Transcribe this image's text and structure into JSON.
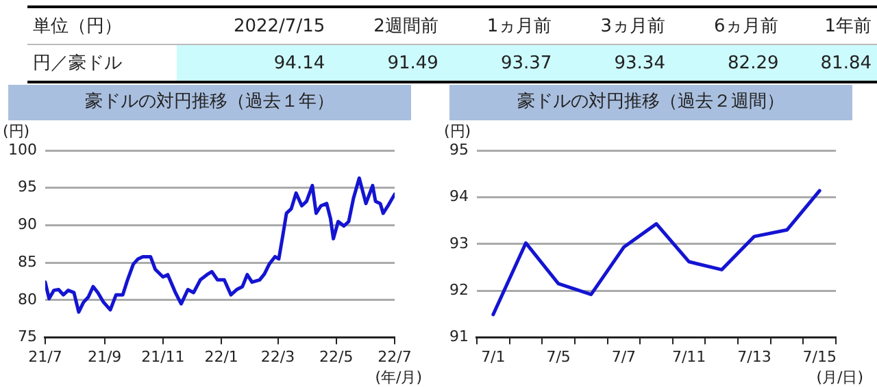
{
  "chart_data": [
    {
      "type": "other",
      "ylabel": "単位（円）",
      "categories": [
        "2022/7/15",
        "2週間前",
        "1ヵ月前",
        "3ヵ月前",
        "6ヵ月前",
        "1年前"
      ],
      "color": "#ccfbfd",
      "series": [
        {
          "name": "円／豪ドル",
          "values": [
            94.14,
            91.49,
            93.37,
            93.34,
            82.29,
            81.84
          ]
        }
      ],
      "data_labels": true
    },
    {
      "type": "line",
      "title": "豪ドルの対円推移（過去１年）",
      "ylabel": "(円)",
      "xlabel": "(年/月)",
      "grid": "y",
      "legend": false,
      "marker": "none",
      "line_style": "solid",
      "xlim": [
        "2021-07-15",
        "2022-07-15"
      ],
      "xticks": [
        {
          "value": "2021-07-15",
          "label": "21/7"
        },
        {
          "value": "2021-09-15",
          "label": "21/9"
        },
        {
          "value": "2021-11-15",
          "label": "21/11"
        },
        {
          "value": "2022-01-15",
          "label": "22/1"
        },
        {
          "value": "2022-03-15",
          "label": "22/3"
        },
        {
          "value": "2022-05-15",
          "label": "22/5"
        },
        {
          "value": "2022-07-15",
          "label": "22/7"
        }
      ],
      "ylim": [
        75,
        100
      ],
      "yticks": [
        75,
        80,
        85,
        90,
        95,
        100
      ],
      "x": [
        "2021-07-15",
        "2021-07-19",
        "2021-07-24",
        "2021-07-29",
        "2021-08-03",
        "2021-08-08",
        "2021-08-14",
        "2021-08-19",
        "2021-08-24",
        "2021-08-29",
        "2021-09-03",
        "2021-09-08",
        "2021-09-14",
        "2021-09-21",
        "2021-09-27",
        "2021-10-04",
        "2021-10-09",
        "2021-10-15",
        "2021-10-20",
        "2021-10-25",
        "2021-11-02",
        "2021-11-07",
        "2021-11-15",
        "2021-11-20",
        "2021-11-28",
        "2021-12-04",
        "2021-12-11",
        "2021-12-17",
        "2021-12-24",
        "2021-12-31",
        "2022-01-05",
        "2022-01-11",
        "2022-01-18",
        "2022-01-25",
        "2022-01-31",
        "2022-02-06",
        "2022-02-11",
        "2022-02-16",
        "2022-02-24",
        "2022-03-01",
        "2022-03-06",
        "2022-03-12",
        "2022-03-16",
        "2022-03-20",
        "2022-03-24",
        "2022-03-29",
        "2022-04-03",
        "2022-04-09",
        "2022-04-14",
        "2022-04-20",
        "2022-04-24",
        "2022-04-29",
        "2022-05-05",
        "2022-05-09",
        "2022-05-12",
        "2022-05-17",
        "2022-05-23",
        "2022-05-28",
        "2022-06-02",
        "2022-06-08",
        "2022-06-15",
        "2022-06-22",
        "2022-06-25",
        "2022-06-30",
        "2022-07-03",
        "2022-07-08",
        "2022-07-15"
      ],
      "series": [
        {
          "color": "#1414d2",
          "values": [
            82.4,
            80.2,
            81.3,
            81.4,
            80.7,
            81.3,
            81.0,
            78.4,
            79.7,
            80.4,
            81.8,
            81.0,
            79.7,
            78.7,
            80.7,
            80.7,
            82.7,
            84.8,
            85.5,
            85.8,
            85.8,
            84.1,
            83.1,
            83.4,
            81.0,
            79.5,
            81.4,
            81.0,
            82.7,
            83.4,
            83.8,
            82.7,
            82.7,
            80.7,
            81.4,
            81.8,
            83.4,
            82.4,
            82.7,
            83.5,
            84.8,
            85.8,
            85.5,
            88.5,
            91.6,
            92.2,
            94.3,
            92.6,
            93.2,
            95.3,
            91.6,
            92.6,
            92.9,
            90.9,
            88.2,
            90.5,
            89.9,
            90.5,
            93.6,
            96.3,
            92.9,
            95.3,
            93.2,
            92.9,
            91.6,
            92.6,
            94.14
          ]
        }
      ]
    },
    {
      "type": "line",
      "title": "豪ドルの対円推移（過去２週間）",
      "ylabel": "(円)",
      "xlabel": "(月/日)",
      "grid": "y",
      "legend": false,
      "marker": "none",
      "line_style": "solid",
      "categories": [
        "7/1",
        null,
        "7/5",
        null,
        "7/7",
        null,
        "7/11",
        null,
        "7/13",
        null,
        "7/15"
      ],
      "ylim": [
        91,
        95
      ],
      "yticks": [
        91,
        92,
        93,
        94,
        95
      ],
      "series": [
        {
          "color": "#1414d2",
          "values": [
            91.49,
            93.02,
            92.15,
            91.92,
            92.93,
            93.43,
            92.62,
            92.45,
            93.16,
            93.3,
            94.14
          ]
        }
      ]
    }
  ]
}
